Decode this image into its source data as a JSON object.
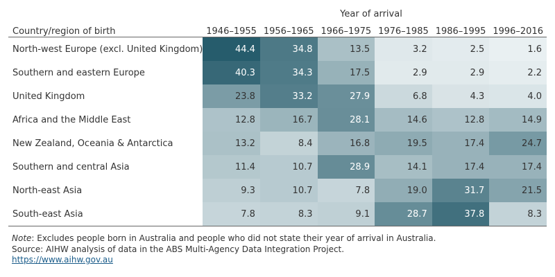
{
  "chart_data": {
    "type": "heatmap",
    "column_group_header": "Year of arrival",
    "row_header": "Country/region of birth",
    "columns": [
      "1946–1955",
      "1956–1965",
      "1966–1975",
      "1976–1985",
      "1986–1995",
      "1996–2016"
    ],
    "rows": [
      {
        "label": "North-west Europe (excl. United Kingdom)",
        "values": [
          "44.4",
          "34.8",
          "13.5",
          "3.2",
          "2.5",
          "1.6"
        ]
      },
      {
        "label": "Southern and eastern Europe",
        "values": [
          "40.3",
          "34.3",
          "17.5",
          "2.9",
          "2.9",
          "2.2"
        ]
      },
      {
        "label": "United Kingdom",
        "values": [
          "23.8",
          "33.2",
          "27.9",
          "6.8",
          "4.3",
          "4.0"
        ]
      },
      {
        "label": "Africa and the Middle East",
        "values": [
          "12.8",
          "16.7",
          "28.1",
          "14.6",
          "12.8",
          "14.9"
        ]
      },
      {
        "label": "New Zealand, Oceania & Antarctica",
        "values": [
          "13.2",
          "8.4",
          "16.8",
          "19.5",
          "17.4",
          "24.7"
        ]
      },
      {
        "label": "Southern and central Asia",
        "values": [
          "11.4",
          "10.7",
          "28.9",
          "14.1",
          "17.4",
          "17.4"
        ]
      },
      {
        "label": "North-east Asia",
        "values": [
          "9.3",
          "10.7",
          "7.8",
          "19.0",
          "31.7",
          "21.5"
        ]
      },
      {
        "label": "South-east Asia",
        "values": [
          "7.8",
          "8.3",
          "9.1",
          "28.7",
          "37.8",
          "8.3"
        ]
      }
    ],
    "color_scale": {
      "low": "#f5f9fa",
      "high": "#245a6a",
      "min": 0,
      "max": 45
    }
  },
  "footnotes": {
    "note_label": "Note",
    "note_text": ": Excludes people born in Australia and people who did not state their year of arrival in Australia.",
    "source": "Source: AIHW analysis of data in the ABS Multi-Agency Data Integration Project.",
    "link": "https://www.aihw.gov.au"
  }
}
